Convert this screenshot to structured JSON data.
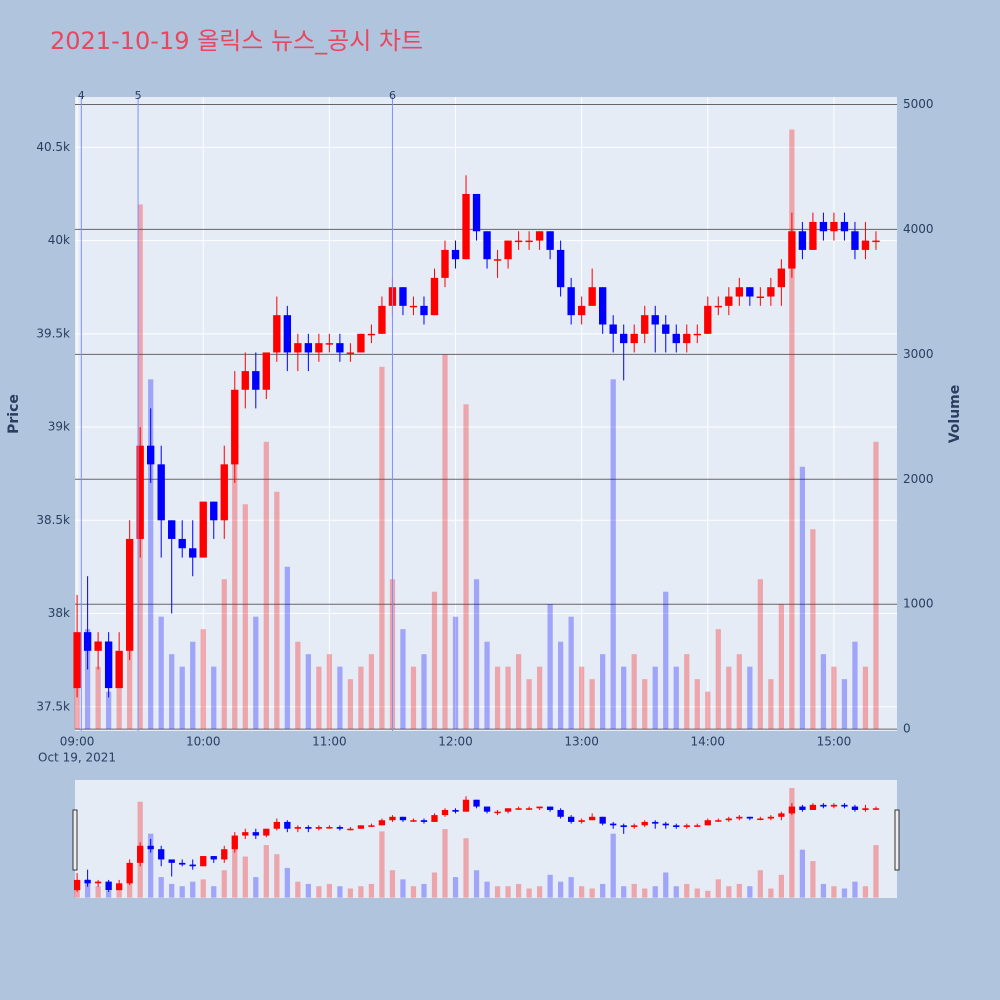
{
  "chart_data": {
    "type": "candlestick",
    "title": "2021-10-19 올릭스 뉴스_공시 차트",
    "y_label": "Price",
    "y2_label": "Volume",
    "x_date_label": "Oct 19, 2021",
    "up_color": "#ff0000",
    "down_color": "#0000ff",
    "grid": true,
    "xlim": [
      "08:59",
      "15:30"
    ],
    "xticks": [
      "09:00",
      "10:00",
      "11:00",
      "12:00",
      "13:00",
      "14:00",
      "15:00"
    ],
    "ylim": [
      37370,
      40770
    ],
    "yticks": [
      {
        "value": 37500,
        "label": "37.5k"
      },
      {
        "value": 38000,
        "label": "38k"
      },
      {
        "value": 38500,
        "label": "38.5k"
      },
      {
        "value": 39000,
        "label": "39k"
      },
      {
        "value": 39500,
        "label": "39.5k"
      },
      {
        "value": 40000,
        "label": "40k"
      },
      {
        "value": 40500,
        "label": "40.5k"
      }
    ],
    "y2lim": [
      -15,
      5060
    ],
    "y2ticks": [
      0,
      1000,
      2000,
      3000,
      4000,
      5000
    ],
    "annotations": [
      {
        "x": "09:02",
        "label": "4"
      },
      {
        "x": "09:29",
        "label": "5"
      },
      {
        "x": "11:30",
        "label": "6"
      }
    ],
    "x": [
      "09:00",
      "09:05",
      "09:10",
      "09:15",
      "09:20",
      "09:25",
      "09:30",
      "09:35",
      "09:40",
      "09:45",
      "09:50",
      "09:55",
      "10:00",
      "10:05",
      "10:10",
      "10:15",
      "10:20",
      "10:25",
      "10:30",
      "10:35",
      "10:40",
      "10:45",
      "10:50",
      "10:55",
      "11:00",
      "11:05",
      "11:10",
      "11:15",
      "11:20",
      "11:25",
      "11:30",
      "11:35",
      "11:40",
      "11:45",
      "11:50",
      "11:55",
      "12:00",
      "12:05",
      "12:10",
      "12:15",
      "12:20",
      "12:25",
      "12:30",
      "12:35",
      "12:40",
      "12:45",
      "12:50",
      "12:55",
      "13:00",
      "13:05",
      "13:10",
      "13:15",
      "13:20",
      "13:25",
      "13:30",
      "13:35",
      "13:40",
      "13:45",
      "13:50",
      "13:55",
      "14:00",
      "14:05",
      "14:10",
      "14:15",
      "14:20",
      "14:25",
      "14:30",
      "14:35",
      "14:40",
      "14:45",
      "14:50",
      "14:55",
      "15:00",
      "15:05",
      "15:10",
      "15:15",
      "15:20"
    ],
    "open": [
      37600,
      37900,
      37800,
      37850,
      37600,
      37800,
      38400,
      38900,
      38800,
      38500,
      38400,
      38350,
      38300,
      38600,
      38500,
      38800,
      39200,
      39300,
      39200,
      39400,
      39600,
      39400,
      39450,
      39400,
      39450,
      39450,
      39400,
      39400,
      39500,
      39500,
      39650,
      39750,
      39650,
      39650,
      39600,
      39800,
      39950,
      39900,
      40250,
      40050,
      39900,
      39900,
      40000,
      40000,
      40000,
      40050,
      39950,
      39750,
      39600,
      39650,
      39750,
      39550,
      39500,
      39450,
      39500,
      39600,
      39550,
      39500,
      39450,
      39500,
      39500,
      39650,
      39650,
      39700,
      39750,
      39700,
      39700,
      39750,
      39850,
      40050,
      39950,
      40100,
      40050,
      40100,
      40050,
      39950,
      40000
    ],
    "high": [
      38100,
      38200,
      37900,
      37900,
      37900,
      38500,
      39000,
      39100,
      38900,
      38500,
      38500,
      38500,
      38600,
      38600,
      38900,
      39300,
      39400,
      39400,
      39400,
      39700,
      39650,
      39500,
      39500,
      39500,
      39500,
      39500,
      39450,
      39500,
      39550,
      39700,
      39800,
      39750,
      39700,
      39700,
      39850,
      40000,
      40000,
      40350,
      40250,
      40050,
      39950,
      40000,
      40050,
      40050,
      40050,
      40050,
      40000,
      39800,
      39700,
      39850,
      39750,
      39600,
      39550,
      39550,
      39650,
      39650,
      39600,
      39550,
      39550,
      39550,
      39700,
      39700,
      39750,
      39800,
      39750,
      39750,
      39800,
      39900,
      40150,
      40100,
      40150,
      40150,
      40150,
      40150,
      40100,
      40100,
      40050
    ],
    "low": [
      37550,
      37700,
      37700,
      37550,
      37600,
      37750,
      38300,
      38700,
      38300,
      38000,
      38300,
      38200,
      38300,
      38400,
      38400,
      38700,
      39100,
      39100,
      39150,
      39350,
      39300,
      39300,
      39300,
      39350,
      39400,
      39350,
      39350,
      39400,
      39450,
      39500,
      39600,
      39600,
      39600,
      39550,
      39600,
      39750,
      39850,
      39900,
      40000,
      39850,
      39800,
      39850,
      39950,
      39950,
      39950,
      39900,
      39700,
      39550,
      39550,
      39650,
      39500,
      39400,
      39250,
      39400,
      39450,
      39400,
      39400,
      39400,
      39400,
      39450,
      39500,
      39600,
      39600,
      39650,
      39650,
      39650,
      39650,
      39650,
      39800,
      39900,
      39950,
      40000,
      40000,
      40000,
      39900,
      39900,
      39950
    ],
    "close": [
      37900,
      37800,
      37850,
      37600,
      37800,
      38400,
      38900,
      38800,
      38500,
      38400,
      38350,
      38300,
      38600,
      38500,
      38800,
      39200,
      39300,
      39200,
      39400,
      39600,
      39400,
      39450,
      39400,
      39450,
      39450,
      39400,
      39400,
      39500,
      39500,
      39650,
      39750,
      39650,
      39650,
      39600,
      39800,
      39950,
      39900,
      40250,
      40050,
      39900,
      39900,
      40000,
      40000,
      40000,
      40050,
      39950,
      39750,
      39600,
      39650,
      39750,
      39550,
      39500,
      39450,
      39500,
      39600,
      39550,
      39500,
      39450,
      39500,
      39500,
      39650,
      39650,
      39700,
      39750,
      39700,
      39700,
      39750,
      39850,
      40050,
      39950,
      40100,
      40050,
      40100,
      40050,
      39950,
      40000,
      40000
    ],
    "volume": [
      400,
      800,
      500,
      300,
      600,
      1500,
      4200,
      2800,
      900,
      600,
      500,
      700,
      800,
      500,
      1200,
      2200,
      1800,
      900,
      2300,
      1900,
      1300,
      700,
      600,
      500,
      600,
      500,
      400,
      500,
      600,
      2900,
      1200,
      800,
      500,
      600,
      1100,
      3000,
      900,
      2600,
      1200,
      700,
      500,
      500,
      600,
      400,
      500,
      1000,
      700,
      900,
      500,
      400,
      600,
      2800,
      500,
      600,
      400,
      500,
      1100,
      500,
      600,
      400,
      300,
      800,
      500,
      600,
      500,
      1200,
      400,
      1000,
      4800,
      2100,
      1600,
      600,
      500,
      400,
      700,
      500,
      2300
    ]
  }
}
